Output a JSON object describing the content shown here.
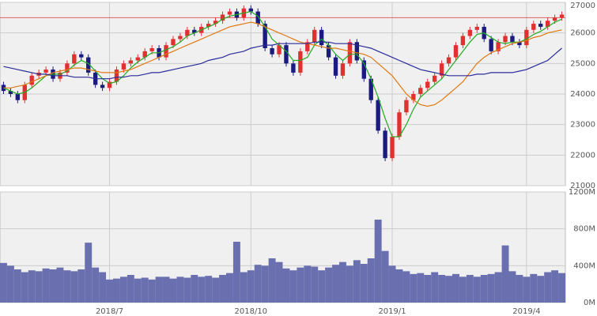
{
  "chart_data": {
    "type": "candlestick",
    "xlim": [
      -0.5,
      79.5
    ],
    "xticks": [
      {
        "value": 15,
        "label": "2018/7"
      },
      {
        "value": 35,
        "label": "2018/10"
      },
      {
        "value": 55,
        "label": "2019/1"
      },
      {
        "value": 74,
        "label": "2019/4"
      }
    ],
    "ylim": [
      21000,
      27000
    ],
    "yticks": [
      21000,
      22000,
      23000,
      24000,
      25000,
      26000,
      27000
    ],
    "grid": true,
    "up_color": "#e03030",
    "down_color": "#1a1a80",
    "reference_line": {
      "value": 26500,
      "color": "#e06060"
    },
    "open": [
      24300,
      24100,
      24000,
      23800,
      24300,
      24600,
      24700,
      24800,
      24500,
      24700,
      25000,
      25300,
      25200,
      24700,
      24300,
      24200,
      24400,
      24800,
      25000,
      25100,
      25200,
      25400,
      25500,
      25200,
      25600,
      25800,
      25900,
      26100,
      26000,
      26200,
      26300,
      26400,
      26600,
      26700,
      26500,
      26800,
      26700,
      26300,
      25500,
      25300,
      25600,
      25000,
      24700,
      25400,
      25700,
      26100,
      25600,
      25200,
      24600,
      25000,
      25700,
      25100,
      24500,
      23800,
      22800,
      21900,
      22600,
      23400,
      23800,
      24000,
      24200,
      24400,
      24600,
      25000,
      25200,
      25600,
      25900,
      26100,
      26200,
      25800,
      25400,
      25700,
      25900,
      25700,
      25600,
      26100,
      26300,
      26200,
      26400,
      26500
    ],
    "high": [
      24400,
      24200,
      24100,
      24400,
      24700,
      24800,
      24900,
      24900,
      24800,
      25100,
      25400,
      25400,
      25300,
      24800,
      24400,
      24500,
      24900,
      25100,
      25200,
      25300,
      25500,
      25600,
      25600,
      25700,
      25900,
      26000,
      26200,
      26200,
      26300,
      26400,
      26500,
      26700,
      26800,
      26800,
      26900,
      26900,
      26800,
      26400,
      25600,
      25700,
      25700,
      25100,
      25500,
      25800,
      26200,
      26200,
      25700,
      25300,
      25100,
      25800,
      25800,
      25200,
      24600,
      23900,
      22900,
      22700,
      23500,
      23900,
      24100,
      24300,
      24500,
      24700,
      25100,
      25300,
      25700,
      26000,
      26200,
      26300,
      26300,
      25900,
      25800,
      26000,
      26000,
      25800,
      26200,
      26400,
      26400,
      26500,
      26600,
      26700
    ],
    "low": [
      24000,
      23900,
      23700,
      23700,
      24200,
      24500,
      24600,
      24400,
      24400,
      24600,
      24900,
      25100,
      24600,
      24200,
      24100,
      24100,
      24300,
      24700,
      24900,
      25000,
      25100,
      25300,
      25100,
      25100,
      25500,
      25700,
      25800,
      25900,
      25900,
      26100,
      26200,
      26300,
      26500,
      26400,
      26400,
      26600,
      26200,
      25400,
      25200,
      25200,
      24900,
      24600,
      24600,
      25300,
      25600,
      25500,
      25100,
      24500,
      24500,
      24900,
      25000,
      24400,
      23700,
      22700,
      21800,
      21800,
      22500,
      23300,
      23700,
      23900,
      24100,
      24300,
      24500,
      24900,
      25100,
      25500,
      25800,
      26000,
      25700,
      25300,
      25300,
      25600,
      25600,
      25500,
      25500,
      26000,
      26100,
      26100,
      26300,
      26400
    ],
    "close": [
      24100,
      24000,
      23800,
      24300,
      24600,
      24700,
      24800,
      24500,
      24700,
      25000,
      25300,
      25200,
      24700,
      24300,
      24200,
      24400,
      24800,
      25000,
      25100,
      25200,
      25400,
      25500,
      25200,
      25600,
      25800,
      25900,
      26100,
      26000,
      26200,
      26300,
      26400,
      26600,
      26700,
      26500,
      26800,
      26700,
      26300,
      25500,
      25300,
      25600,
      25000,
      24700,
      25400,
      25700,
      26100,
      25600,
      25200,
      24600,
      25000,
      25700,
      25100,
      24500,
      23800,
      22800,
      21900,
      22600,
      23400,
      23800,
      24000,
      24200,
      24400,
      24600,
      25000,
      25200,
      25600,
      25900,
      26100,
      26200,
      25800,
      25400,
      25700,
      25900,
      25700,
      25600,
      26100,
      26300,
      26200,
      26400,
      26500,
      26600
    ],
    "series": [
      {
        "color": "#22aa22",
        "values": [
          24200,
          24100,
          24000,
          24050,
          24200,
          24400,
          24600,
          24650,
          24650,
          24750,
          24950,
          25100,
          25000,
          24750,
          24500,
          24350,
          24400,
          24600,
          24850,
          25050,
          25200,
          25350,
          25350,
          25450,
          25550,
          25700,
          25900,
          26000,
          26100,
          26200,
          26300,
          26450,
          26550,
          26600,
          26650,
          26700,
          26550,
          26200,
          25800,
          25600,
          25400,
          25100,
          25100,
          25200,
          25600,
          25800,
          25600,
          25300,
          25100,
          25300,
          25300,
          25000,
          24500,
          23900,
          23200,
          22600,
          22600,
          23000,
          23500,
          23900,
          24100,
          24300,
          24500,
          24800,
          25100,
          25400,
          25700,
          25950,
          26000,
          25850,
          25700,
          25650,
          25700,
          25700,
          25800,
          25950,
          26050,
          26200,
          26350,
          26450
        ]
      },
      {
        "color": "#e07810",
        "values": [
          24200,
          24200,
          24250,
          24300,
          24400,
          24500,
          24600,
          24700,
          24750,
          24800,
          24850,
          24850,
          24800,
          24750,
          24700,
          24700,
          24700,
          24750,
          24800,
          24900,
          25000,
          25100,
          25200,
          25300,
          25400,
          25500,
          25600,
          25700,
          25800,
          25900,
          26000,
          26100,
          26200,
          26250,
          26300,
          26350,
          26300,
          26200,
          26100,
          26000,
          25900,
          25800,
          25700,
          25650,
          25600,
          25550,
          25500,
          25500,
          25450,
          25400,
          25350,
          25300,
          25200,
          25000,
          24800,
          24600,
          24300,
          24000,
          23800,
          23650,
          23600,
          23650,
          23800,
          24000,
          24200,
          24400,
          24700,
          25000,
          25200,
          25350,
          25450,
          25550,
          25650,
          25700,
          25750,
          25850,
          25900,
          26000,
          26050,
          26100
        ]
      },
      {
        "color": "#2a2a9a",
        "values": [
          24900,
          24850,
          24800,
          24750,
          24700,
          24650,
          24650,
          24600,
          24600,
          24600,
          24550,
          24550,
          24550,
          24500,
          24500,
          24500,
          24550,
          24550,
          24600,
          24600,
          24650,
          24700,
          24700,
          24750,
          24800,
          24850,
          24900,
          24950,
          25000,
          25100,
          25150,
          25200,
          25300,
          25350,
          25400,
          25500,
          25550,
          25600,
          25600,
          25650,
          25650,
          25650,
          25650,
          25650,
          25700,
          25700,
          25700,
          25650,
          25650,
          25650,
          25600,
          25550,
          25500,
          25400,
          25300,
          25200,
          25100,
          25000,
          24900,
          24800,
          24750,
          24700,
          24650,
          24600,
          24600,
          24600,
          24600,
          24650,
          24650,
          24700,
          24700,
          24700,
          24700,
          24750,
          24800,
          24900,
          25000,
          25100,
          25300,
          25500
        ]
      }
    ],
    "volume": {
      "color": "#6a6fb0",
      "ylim": [
        0,
        1200
      ],
      "yticks": [
        {
          "value": 0,
          "label": "0M"
        },
        {
          "value": 400,
          "label": "400M"
        },
        {
          "value": 800,
          "label": "800M"
        },
        {
          "value": 1200,
          "label": "1200M"
        }
      ],
      "values": [
        430,
        400,
        360,
        330,
        350,
        340,
        370,
        360,
        380,
        350,
        340,
        360,
        650,
        380,
        330,
        250,
        260,
        280,
        300,
        260,
        270,
        250,
        280,
        280,
        260,
        280,
        270,
        300,
        280,
        290,
        270,
        300,
        320,
        660,
        330,
        350,
        410,
        400,
        480,
        440,
        370,
        350,
        380,
        400,
        390,
        350,
        380,
        410,
        440,
        400,
        460,
        420,
        480,
        900,
        560,
        400,
        360,
        340,
        310,
        320,
        300,
        330,
        300,
        290,
        310,
        280,
        300,
        280,
        300,
        310,
        330,
        620,
        340,
        300,
        280,
        310,
        290,
        330,
        350,
        320
      ]
    }
  }
}
